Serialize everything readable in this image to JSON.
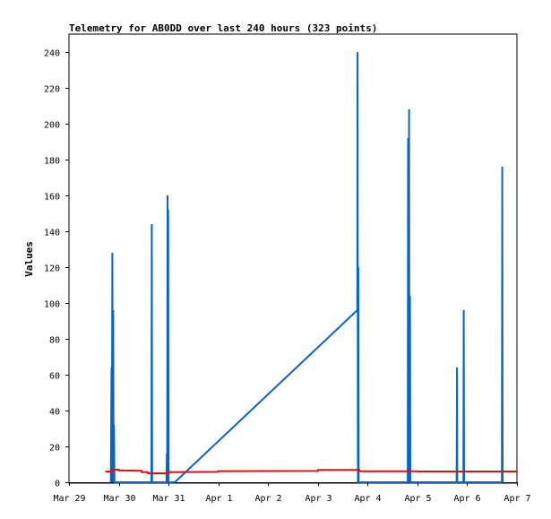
{
  "chart_data": {
    "type": "line",
    "title": "Telemetry for AB0DD over last 240 hours (323 points)",
    "xlabel": "",
    "ylabel": "Values",
    "ylim": [
      0,
      250
    ],
    "xlim": [
      "2024-03-29T00:00",
      "2024-04-07T00:00"
    ],
    "yticks": [
      0,
      20,
      40,
      60,
      80,
      100,
      120,
      140,
      160,
      180,
      200,
      220,
      240
    ],
    "xticks": [
      {
        "x": "2024-03-29T00:00",
        "label": "Mar 29"
      },
      {
        "x": "2024-03-30T00:00",
        "label": "Mar 30"
      },
      {
        "x": "2024-03-31T00:00",
        "label": "Mar 31"
      },
      {
        "x": "2024-04-01T00:00",
        "label": "Apr 1"
      },
      {
        "x": "2024-04-02T00:00",
        "label": "Apr 2"
      },
      {
        "x": "2024-04-03T00:00",
        "label": "Apr 3"
      },
      {
        "x": "2024-04-04T00:00",
        "label": "Apr 4"
      },
      {
        "x": "2024-04-05T00:00",
        "label": "Apr 5"
      },
      {
        "x": "2024-04-06T00:00",
        "label": "Apr 6"
      },
      {
        "x": "2024-04-07T00:00",
        "label": "Apr 7"
      }
    ],
    "grid": false,
    "legend": "none",
    "series": [
      {
        "color": "#0a64c0",
        "points": [
          [
            "2024-03-29T20:10",
            0
          ],
          [
            "2024-03-29T20:30",
            64
          ],
          [
            "2024-03-29T20:40",
            0
          ],
          [
            "2024-03-29T20:55",
            128
          ],
          [
            "2024-03-29T21:05",
            0
          ],
          [
            "2024-03-29T21:20",
            96
          ],
          [
            "2024-03-29T21:30",
            0
          ],
          [
            "2024-03-29T21:45",
            32
          ],
          [
            "2024-03-29T21:55",
            0
          ],
          [
            "2024-03-30T15:45",
            0
          ],
          [
            "2024-03-30T15:55",
            144
          ],
          [
            "2024-03-30T16:05",
            0
          ],
          [
            "2024-03-30T23:00",
            0
          ],
          [
            "2024-03-30T23:10",
            16
          ],
          [
            "2024-03-30T23:20",
            0
          ],
          [
            "2024-03-30T23:30",
            160
          ],
          [
            "2024-03-30T23:40",
            0
          ],
          [
            "2024-03-30T23:50",
            152
          ],
          [
            "2024-03-31T00:00",
            0
          ],
          [
            "2024-03-31T03:00",
            0
          ],
          [
            "2024-04-03T19:00",
            96
          ],
          [
            "2024-04-03T19:10",
            240
          ],
          [
            "2024-04-03T19:20",
            0
          ],
          [
            "2024-04-03T19:30",
            120
          ],
          [
            "2024-04-03T19:40",
            0
          ],
          [
            "2024-04-04T19:20",
            0
          ],
          [
            "2024-04-04T19:30",
            192
          ],
          [
            "2024-04-04T19:40",
            0
          ],
          [
            "2024-04-04T20:00",
            208
          ],
          [
            "2024-04-04T20:10",
            0
          ],
          [
            "2024-04-04T20:25",
            104
          ],
          [
            "2024-04-04T20:35",
            0
          ],
          [
            "2024-04-05T18:55",
            0
          ],
          [
            "2024-04-05T19:05",
            64
          ],
          [
            "2024-04-05T19:15",
            0
          ],
          [
            "2024-04-05T22:10",
            0
          ],
          [
            "2024-04-05T22:20",
            96
          ],
          [
            "2024-04-05T22:30",
            0
          ],
          [
            "2024-04-06T16:45",
            0
          ],
          [
            "2024-04-06T16:55",
            176
          ],
          [
            "2024-04-06T17:05",
            0
          ]
        ]
      },
      {
        "color": "#e01010",
        "points": [
          [
            "2024-03-29T17:30",
            6
          ],
          [
            "2024-03-29T20:30",
            6
          ],
          [
            "2024-03-29T20:35",
            7
          ],
          [
            "2024-03-30T00:00",
            7
          ],
          [
            "2024-03-30T00:05",
            6.6
          ],
          [
            "2024-03-30T11:00",
            6.4
          ],
          [
            "2024-03-30T11:05",
            5.6
          ],
          [
            "2024-03-30T14:00",
            5.6
          ],
          [
            "2024-03-30T14:05",
            5
          ],
          [
            "2024-03-31T00:00",
            5
          ],
          [
            "2024-03-31T00:05",
            5.6
          ],
          [
            "2024-03-31T23:55",
            5.8
          ],
          [
            "2024-04-01T00:00",
            6.2
          ],
          [
            "2024-04-02T23:55",
            6.3
          ],
          [
            "2024-04-03T00:00",
            6.9
          ],
          [
            "2024-04-03T20:00",
            6.9
          ],
          [
            "2024-04-03T20:05",
            6.1
          ],
          [
            "2024-04-05T00:00",
            6.1
          ],
          [
            "2024-04-05T00:05",
            6.0
          ],
          [
            "2024-04-06T23:55",
            6.0
          ]
        ]
      }
    ]
  }
}
